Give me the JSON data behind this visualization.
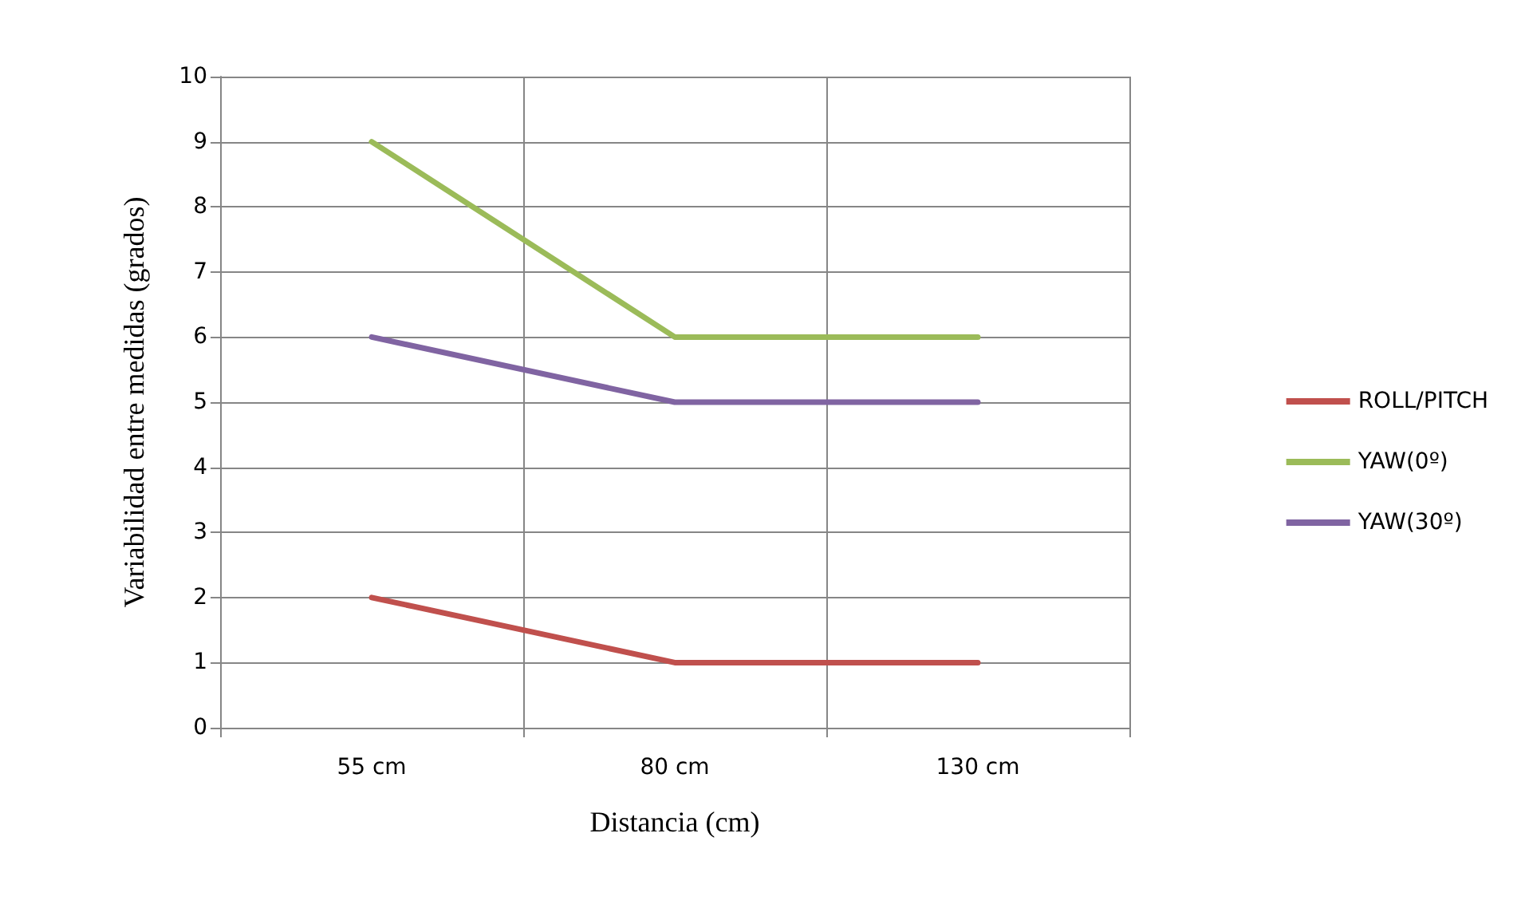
{
  "chart_data": {
    "type": "line",
    "xlabel": "Distancia (cm)",
    "ylabel": "Variabilidad entre medidas (grados)",
    "categories": [
      "55 cm",
      "80 cm",
      "130 cm"
    ],
    "series": [
      {
        "name": "ROLL/PITCH",
        "color": "#c0504d",
        "values": [
          2,
          1,
          1
        ]
      },
      {
        "name": "YAW(0º)",
        "color": "#9bbb59",
        "values": [
          9,
          6,
          6
        ]
      },
      {
        "name": "YAW(30º)",
        "color": "#8064a2",
        "values": [
          6,
          5,
          5
        ]
      }
    ],
    "ylim": [
      0,
      10
    ],
    "yticks": [
      0,
      1,
      2,
      3,
      4,
      5,
      6,
      7,
      8,
      9,
      10
    ],
    "grid": true,
    "legend": "right",
    "marker": "none",
    "line_style": "solid"
  }
}
